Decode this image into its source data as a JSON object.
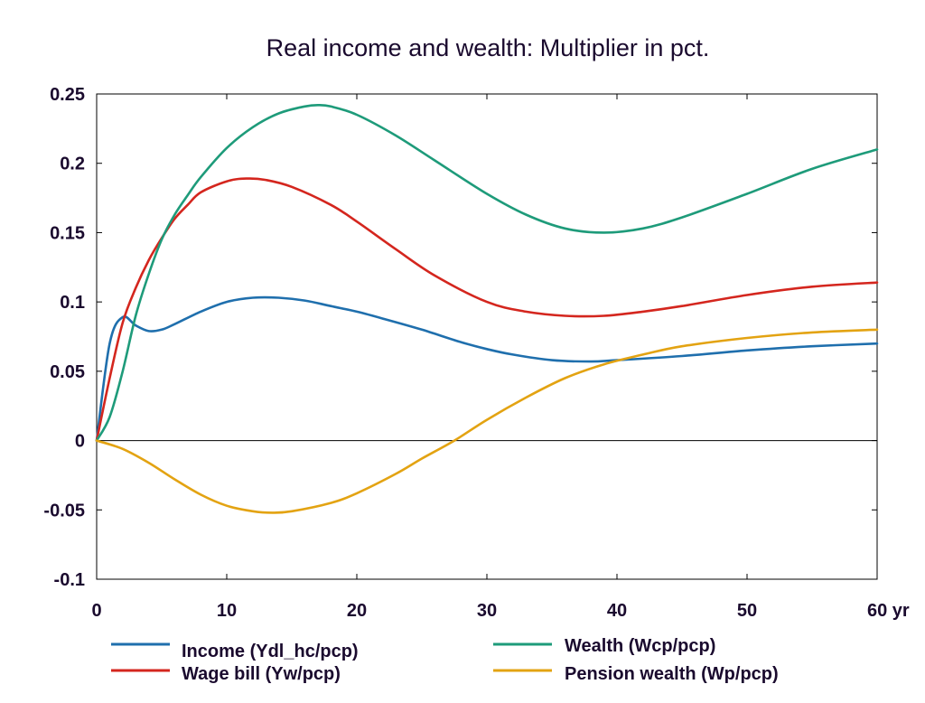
{
  "chart_data": {
    "type": "line",
    "title": "Real income and wealth: Multiplier in pct.",
    "xlabel": "",
    "ylabel": "",
    "xlim": [
      0,
      60
    ],
    "ylim": [
      -0.1,
      0.25
    ],
    "x_ticks": [
      0,
      10,
      20,
      30,
      40,
      50,
      60
    ],
    "x_tick_labels": [
      "0",
      "10",
      "20",
      "30",
      "40",
      "50",
      "60 yr"
    ],
    "y_ticks": [
      -0.1,
      -0.05,
      0,
      0.05,
      0.1,
      0.15,
      0.2,
      0.25
    ],
    "y_tick_labels": [
      "-0.1",
      "-0.05",
      "0",
      "0.05",
      "0.1",
      "0.15",
      "0.2",
      "0.25"
    ],
    "grid": false,
    "zero_line": true,
    "legend_position": "bottom",
    "series": [
      {
        "name": "Income (Ydl_hc/pcp)",
        "color": "#1f6fad",
        "x": [
          0,
          1,
          2,
          3,
          4,
          5,
          6,
          8,
          10,
          12,
          14,
          16,
          18,
          20,
          22,
          25,
          28,
          30,
          32,
          35,
          38,
          40,
          45,
          50,
          55,
          60
        ],
        "y": [
          0,
          0.07,
          0.089,
          0.083,
          0.079,
          0.08,
          0.084,
          0.093,
          0.1,
          0.103,
          0.103,
          0.101,
          0.097,
          0.093,
          0.088,
          0.08,
          0.071,
          0.066,
          0.062,
          0.058,
          0.057,
          0.058,
          0.061,
          0.065,
          0.068,
          0.07
        ]
      },
      {
        "name": "Wage bill (Yw/pcp)",
        "color": "#d4261e",
        "x": [
          0,
          1,
          2,
          3,
          4,
          5,
          6,
          7,
          8,
          10,
          11.5,
          13,
          15,
          18,
          20,
          23,
          26,
          30,
          33,
          36,
          39,
          42,
          45,
          50,
          55,
          60
        ],
        "y": [
          0,
          0.045,
          0.085,
          0.11,
          0.13,
          0.146,
          0.16,
          0.17,
          0.179,
          0.187,
          0.189,
          0.188,
          0.183,
          0.17,
          0.158,
          0.138,
          0.119,
          0.1,
          0.093,
          0.09,
          0.09,
          0.093,
          0.097,
          0.105,
          0.111,
          0.114
        ]
      },
      {
        "name": "Wealth (Wcp/pcp)",
        "color": "#1e9b7a",
        "x": [
          0,
          1,
          2,
          3,
          4,
          5,
          6,
          7,
          8,
          10,
          12,
          14,
          16,
          17,
          18,
          20,
          23,
          26,
          30,
          33,
          36,
          39,
          42,
          45,
          50,
          55,
          60
        ],
        "y": [
          0,
          0.017,
          0.05,
          0.09,
          0.12,
          0.145,
          0.163,
          0.177,
          0.19,
          0.211,
          0.226,
          0.236,
          0.241,
          0.242,
          0.241,
          0.235,
          0.22,
          0.202,
          0.178,
          0.163,
          0.153,
          0.15,
          0.153,
          0.161,
          0.178,
          0.196,
          0.21
        ]
      },
      {
        "name": "Pension wealth (Wp/pcp)",
        "color": "#e3a312",
        "x": [
          0,
          2,
          4,
          6,
          8,
          10,
          12,
          13.5,
          15,
          18,
          20,
          23,
          25,
          27.5,
          30,
          33,
          36,
          39,
          42,
          45,
          50,
          55,
          60
        ],
        "y": [
          0,
          -0.006,
          -0.016,
          -0.028,
          -0.039,
          -0.047,
          -0.051,
          -0.052,
          -0.051,
          -0.045,
          -0.038,
          -0.024,
          -0.013,
          0,
          0.015,
          0.031,
          0.045,
          0.055,
          0.062,
          0.068,
          0.074,
          0.078,
          0.08
        ]
      }
    ]
  }
}
